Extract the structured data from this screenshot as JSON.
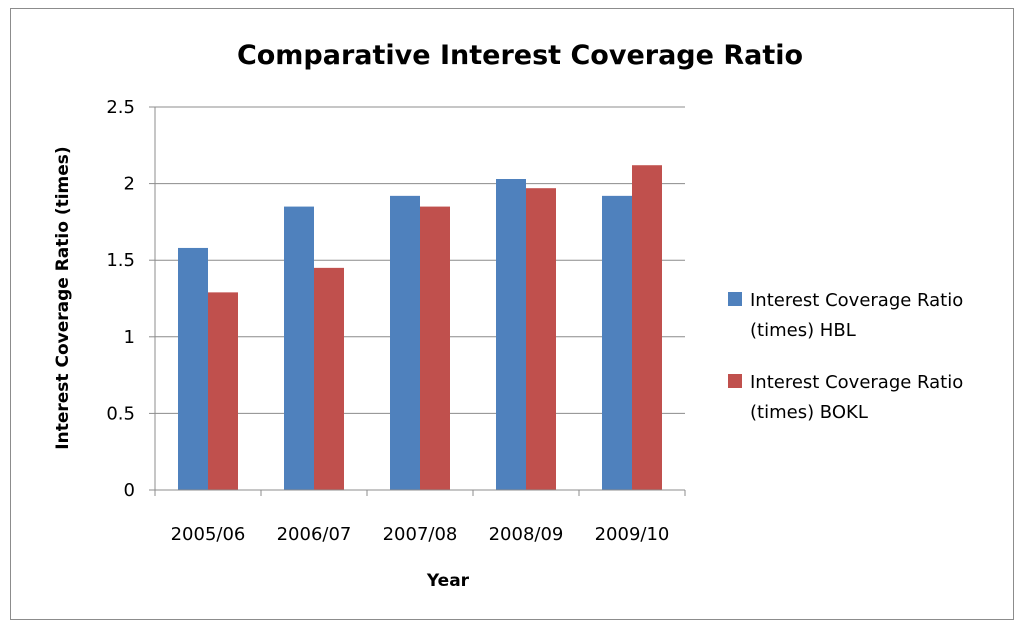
{
  "chart_data": {
    "type": "bar",
    "title": "Comparative Interest Coverage Ratio",
    "xlabel": "Year",
    "ylabel": "Interest Coverage Ratio (times)",
    "categories": [
      "2005/06",
      "2006/07",
      "2007/08",
      "2008/09",
      "2009/10"
    ],
    "ylim": [
      0,
      2.5
    ],
    "yticks": [
      "0",
      "0.5",
      "1",
      "1.5",
      "2",
      "2.5"
    ],
    "grid": true,
    "legend_position": "right",
    "series": [
      {
        "name": "Interest Coverage Ratio (times) HBL",
        "legend_lines": [
          "Interest Coverage Ratio",
          "(times) HBL"
        ],
        "color": "#4F81BD",
        "values": [
          1.58,
          1.85,
          1.92,
          2.03,
          1.92
        ]
      },
      {
        "name": "Interest Coverage Ratio (times) BOKL",
        "legend_lines": [
          "Interest Coverage Ratio",
          "(times) BOKL"
        ],
        "color": "#C0504D",
        "values": [
          1.29,
          1.45,
          1.85,
          1.97,
          2.12
        ]
      }
    ]
  }
}
